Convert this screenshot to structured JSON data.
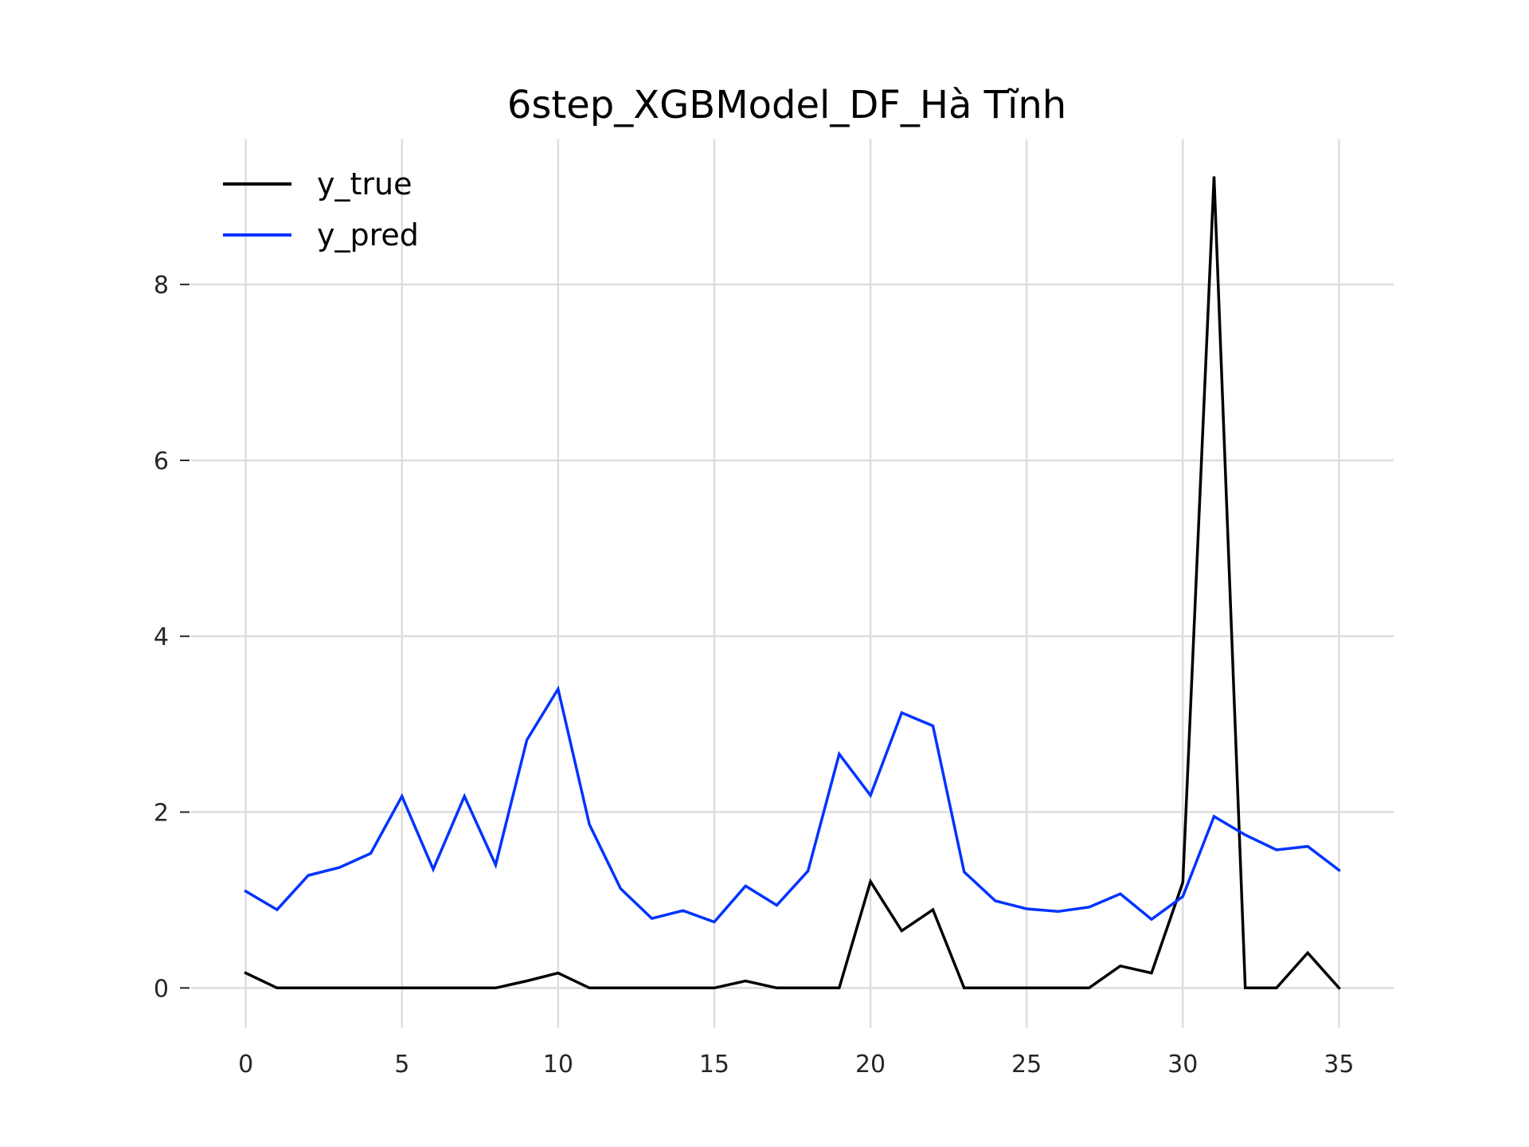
{
  "chart_data": {
    "type": "line",
    "title": "6step_XGBModel_DF_Hà Tĩnh",
    "xlabel": "",
    "ylabel": "",
    "x": [
      0,
      1,
      2,
      3,
      4,
      5,
      6,
      7,
      8,
      9,
      10,
      11,
      12,
      13,
      14,
      15,
      16,
      17,
      18,
      19,
      20,
      21,
      22,
      23,
      24,
      25,
      26,
      27,
      28,
      29,
      30,
      31,
      32,
      33,
      34,
      35
    ],
    "xlim": [
      -1.75,
      36.75
    ],
    "ylim": [
      -0.45,
      9.65
    ],
    "xticks": [
      0,
      5,
      10,
      15,
      20,
      25,
      30,
      35
    ],
    "yticks": [
      0,
      2,
      4,
      6,
      8
    ],
    "grid": true,
    "legend_position": "top-left",
    "series": [
      {
        "name": "y_true",
        "color": "#000000",
        "values": [
          0.17,
          0,
          0,
          0,
          0,
          0,
          0,
          0,
          0,
          0.08,
          0.17,
          0,
          0,
          0,
          0,
          0,
          0.08,
          0,
          0,
          0,
          1.21,
          0.65,
          0.89,
          0,
          0,
          0,
          0,
          0,
          0.25,
          0.17,
          1.2,
          9.23,
          0,
          0,
          0.4,
          0
        ]
      },
      {
        "name": "y_pred",
        "color": "#0033ff",
        "values": [
          1.1,
          0.89,
          1.28,
          1.37,
          1.53,
          2.18,
          1.35,
          2.18,
          1.4,
          2.82,
          3.4,
          1.86,
          1.13,
          0.79,
          0.88,
          0.75,
          1.16,
          0.94,
          1.33,
          2.66,
          2.19,
          3.13,
          2.98,
          1.32,
          0.99,
          0.9,
          0.87,
          0.92,
          1.07,
          0.78,
          1.04,
          1.95,
          1.74,
          1.57,
          1.61,
          1.34
        ]
      }
    ]
  }
}
